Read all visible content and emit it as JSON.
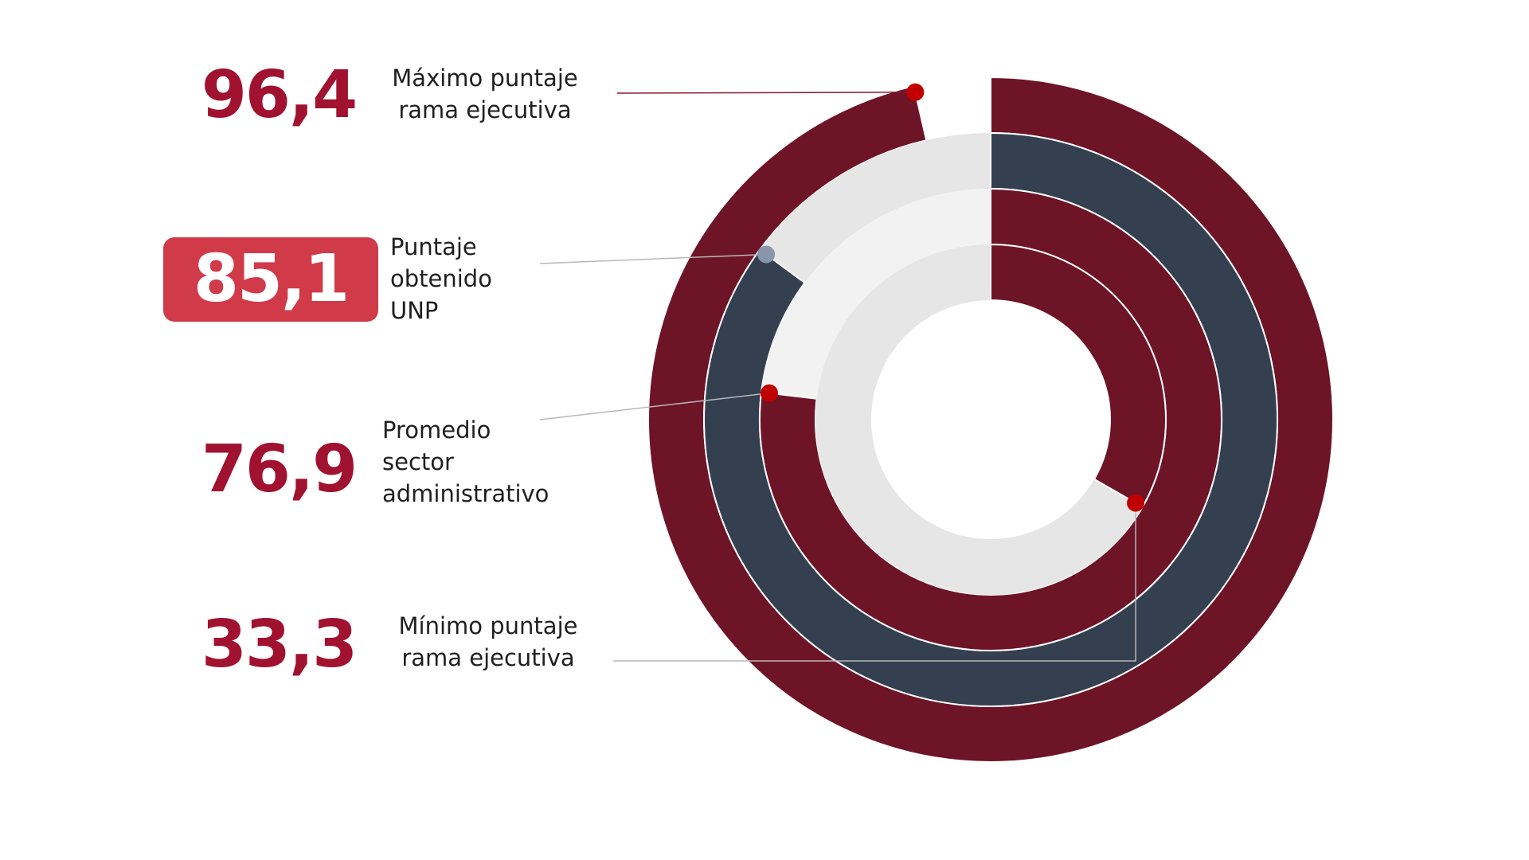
{
  "chart_data": {
    "type": "radial_bar",
    "scale_max": 100,
    "series": [
      {
        "label_lines": [
          "Máximo puntaje",
          "rama ejecutiva"
        ],
        "value_text": "96,4",
        "value": 96.4,
        "color": "#6e1427",
        "marker_color": "#c00000",
        "highlight": false
      },
      {
        "label_lines": [
          "Puntaje",
          "obtenido",
          "UNP"
        ],
        "value_text": "85,1",
        "value": 85.1,
        "color": "#343f50",
        "marker_color": "#8796aa",
        "highlight": true
      },
      {
        "label_lines": [
          "Promedio",
          "sector",
          "administrativo"
        ],
        "value_text": "76,9",
        "value": 76.9,
        "color": "#6e1427",
        "marker_color": "#c00000",
        "highlight": false
      },
      {
        "label_lines": [
          "Mínimo puntaje",
          "rama ejecutiva"
        ],
        "value_text": "33,3",
        "value": 33.3,
        "color": "#6e1427",
        "marker_color": "#c00000",
        "highlight": false
      }
    ],
    "track_colors": [
      "#e6e6e6",
      "#f2f2f2"
    ]
  }
}
